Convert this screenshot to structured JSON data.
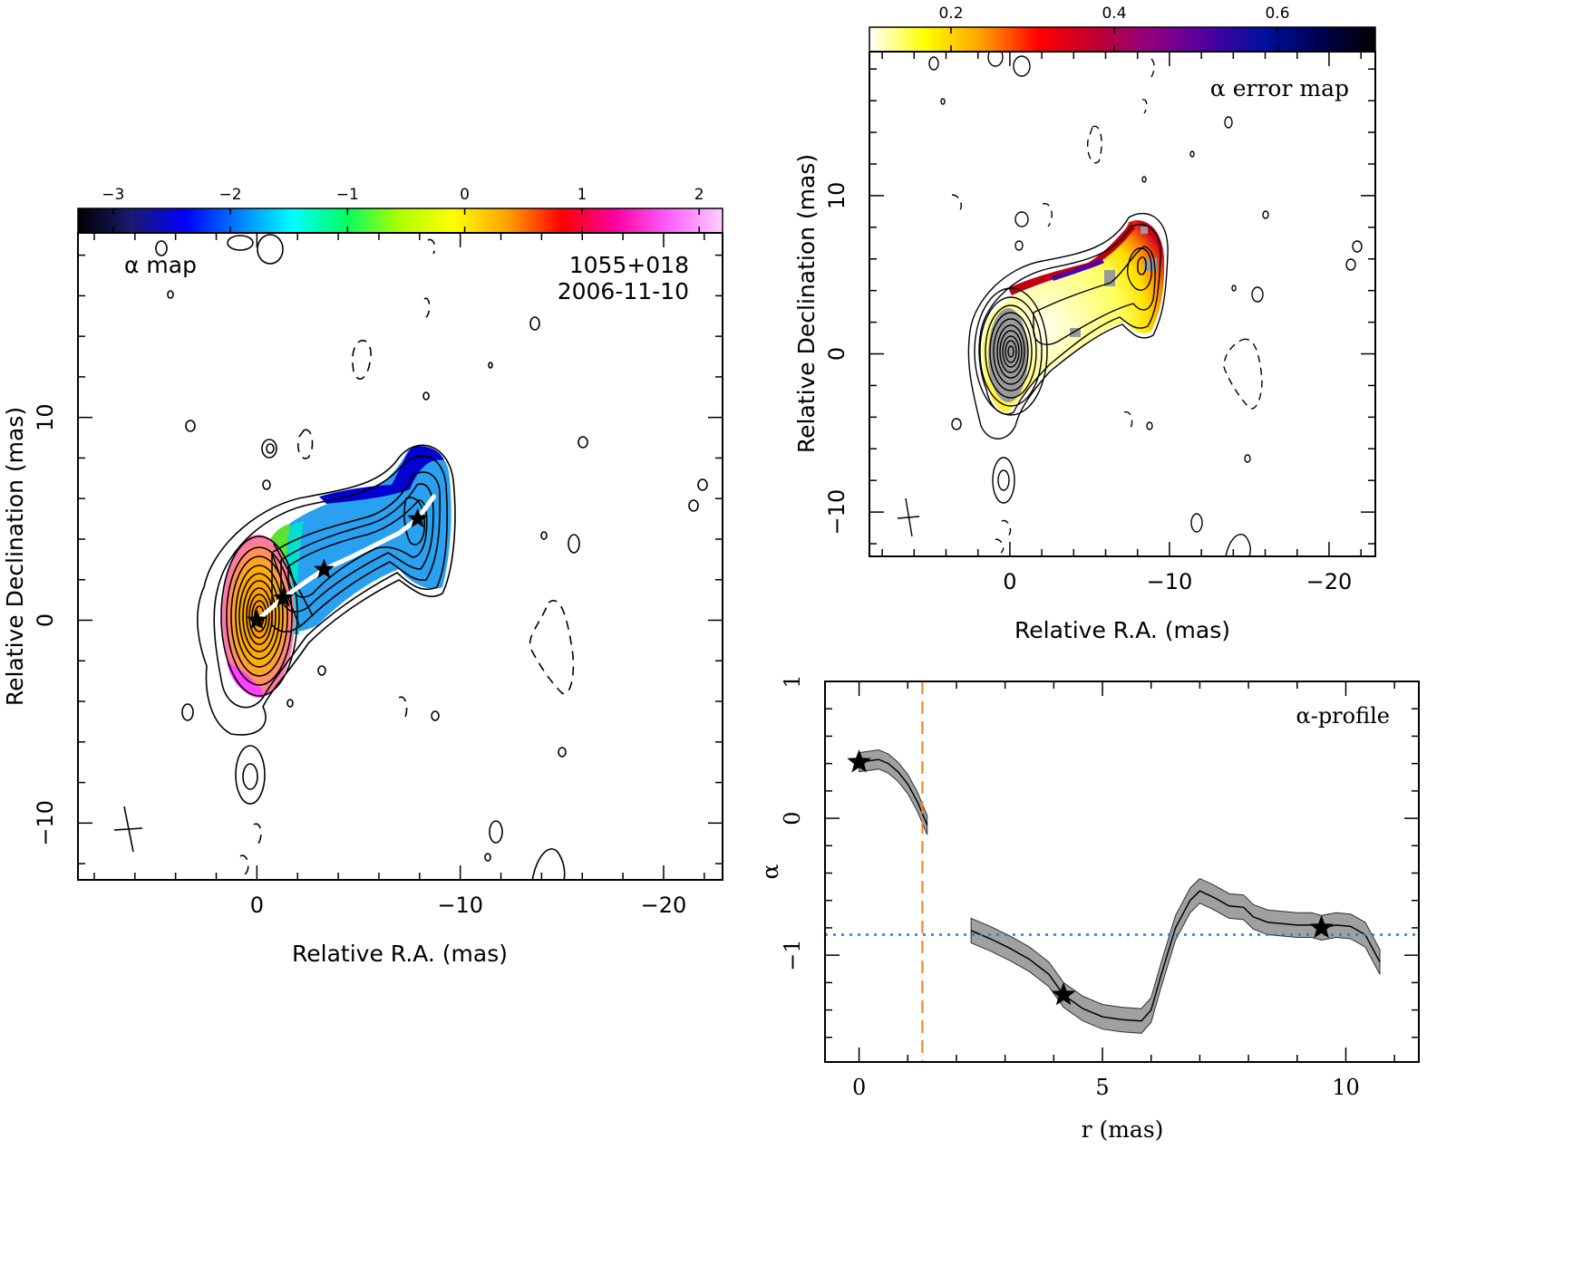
{
  "chart_data": [
    {
      "type": "heatmap",
      "panel": "alpha-map",
      "title": "α map",
      "source_label": "1055+018",
      "date_label": "2006-11-10",
      "xlabel": "Relative R.A. (mas)",
      "ylabel": "Relative Declination (mas)",
      "xlim": [
        8.8,
        -22.9
      ],
      "ylim": [
        -12.8,
        19.1
      ],
      "x_ticks": [
        0,
        -10,
        -20
      ],
      "x_tick_labels": [
        "0",
        "−10",
        "−20"
      ],
      "y_ticks": [
        -10,
        0,
        10
      ],
      "y_tick_labels": [
        "−10",
        "0",
        "10"
      ],
      "colorbar": {
        "range": [
          -3.3,
          2.2
        ],
        "ticks": [
          -3,
          -2,
          -1,
          0,
          1,
          2
        ],
        "tick_labels": [
          "−3",
          "−2",
          "−1",
          "0",
          "1",
          "2"
        ],
        "colors": [
          "#000000",
          "#1a1a70",
          "#0000ff",
          "#0080ff",
          "#00ffff",
          "#00ff60",
          "#b0ff00",
          "#ffff00",
          "#ffa000",
          "#ff0000",
          "#ff00a0",
          "#ff60ff",
          "#ffd0ff"
        ]
      },
      "ridge": [
        [
          0,
          0
        ],
        [
          -1.3,
          1.1
        ],
        [
          -2.4,
          1.9
        ],
        [
          -3.3,
          2.5
        ],
        [
          -4.6,
          3.1
        ],
        [
          -6.0,
          3.8
        ],
        [
          -7.0,
          4.3
        ],
        [
          -7.9,
          5.0
        ],
        [
          -8.7,
          6.1
        ]
      ],
      "stars": [
        [
          0,
          0
        ],
        [
          -1.3,
          1.1
        ],
        [
          -3.3,
          2.5
        ],
        [
          -7.9,
          5.0
        ]
      ],
      "beam_label": "+",
      "grid": false
    },
    {
      "type": "heatmap",
      "panel": "alpha-error-map",
      "title": "α error map",
      "xlabel": "Relative R.A. (mas)",
      "ylabel": "Relative Declination (mas)",
      "xlim": [
        8.8,
        -22.9
      ],
      "ylim": [
        -12.8,
        19.1
      ],
      "x_ticks": [
        0,
        -10,
        -20
      ],
      "x_tick_labels": [
        "0",
        "−10",
        "−20"
      ],
      "y_ticks": [
        -10,
        0,
        10
      ],
      "y_tick_labels": [
        "−10",
        "0",
        "10"
      ],
      "colorbar": {
        "range": [
          0.1,
          0.72
        ],
        "ticks": [
          0.2,
          0.4,
          0.6
        ],
        "tick_labels": [
          "0.2",
          "0.4",
          "0.6"
        ],
        "colors": [
          "#ffffff",
          "#ffff00",
          "#ffa000",
          "#ff0000",
          "#c00030",
          "#900080",
          "#5000a0",
          "#0010a0",
          "#000050",
          "#000000"
        ]
      },
      "grid": false
    },
    {
      "type": "line",
      "panel": "alpha-profile",
      "title": "α-profile",
      "xlabel": "r (mas)",
      "ylabel": "α",
      "xlim": [
        -0.7,
        11.5
      ],
      "ylim": [
        -1.78,
        1.0
      ],
      "x_ticks": [
        0,
        5,
        10
      ],
      "x_tick_labels": [
        "0",
        "5",
        "10"
      ],
      "y_ticks": [
        -1,
        0,
        1
      ],
      "y_tick_labels": [
        "−1",
        "0",
        "1"
      ],
      "vline_x": 1.3,
      "hline_y": -0.85,
      "series": [
        {
          "x": [
            0.0,
            0.2,
            0.4,
            0.6,
            0.8,
            1.0,
            1.2,
            1.4
          ],
          "y": [
            0.41,
            0.42,
            0.43,
            0.4,
            0.34,
            0.25,
            0.12,
            -0.05
          ],
          "err": 0.07
        },
        {
          "x": [
            2.3,
            2.7,
            3.1,
            3.5,
            3.9,
            4.2,
            4.6,
            5.0,
            5.4,
            5.8,
            6.0,
            6.2,
            6.5,
            6.8,
            7.0,
            7.3,
            7.6,
            7.9,
            8.1,
            8.4,
            8.7,
            9.0,
            9.3,
            9.5,
            9.8,
            10.1,
            10.4,
            10.7
          ],
          "y": [
            -0.82,
            -0.88,
            -0.95,
            -1.03,
            -1.14,
            -1.29,
            -1.39,
            -1.45,
            -1.47,
            -1.48,
            -1.4,
            -1.15,
            -0.8,
            -0.6,
            -0.53,
            -0.58,
            -0.64,
            -0.65,
            -0.72,
            -0.76,
            -0.77,
            -0.78,
            -0.78,
            -0.8,
            -0.78,
            -0.79,
            -0.85,
            -1.05
          ],
          "err": 0.09
        }
      ],
      "stars": [
        [
          0.0,
          0.41
        ],
        [
          4.2,
          -1.29
        ],
        [
          9.5,
          -0.8
        ]
      ],
      "grid": false
    }
  ]
}
